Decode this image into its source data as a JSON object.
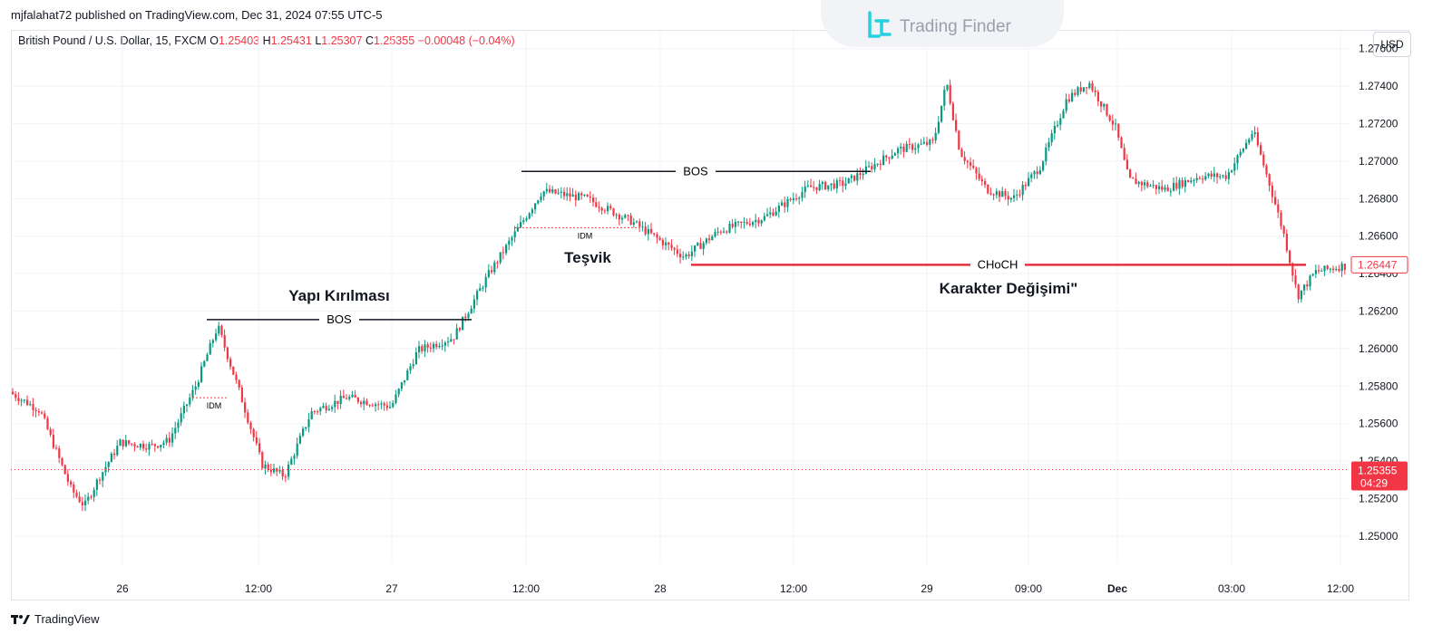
{
  "header": {
    "publisher": "mjfalahat72 published on TradingView.com, Dec 31, 2024 07:55 UTC-5",
    "symbol": "British Pound / U.S. Dollar, 15, FXCM",
    "ohlc": {
      "o_label": "O",
      "o": "1.25403",
      "h_label": "H",
      "h": "1.25431",
      "l_label": "L",
      "l": "1.25307",
      "c_label": "C",
      "c": "1.25355",
      "change": "−0.00048 (−0.04%)"
    }
  },
  "logo": {
    "text": "Trading Finder",
    "icon": "trading-finder-logo-icon"
  },
  "currency": "USD",
  "footer": {
    "brand": "TradingView",
    "icon": "tradingview-logo-icon"
  },
  "colors": {
    "up": "#089981",
    "down": "#f23645",
    "choch": "#e5303f",
    "bos": "#131722",
    "grid": "#f0f3fa",
    "price_line": "#f23645"
  },
  "chart_data": {
    "type": "candlestick",
    "title": "British Pound / U.S. Dollar, 15, FXCM",
    "ylim": [
      1.2485,
      1.277
    ],
    "y_ticks": [
      "1.27600",
      "1.27400",
      "1.27200",
      "1.27000",
      "1.26800",
      "1.26600",
      "1.26400",
      "1.26200",
      "1.26000",
      "1.25800",
      "1.25600",
      "1.25400",
      "1.25200",
      "1.25000"
    ],
    "x_ticks": [
      "26",
      "12:00",
      "27",
      "12:00",
      "28",
      "12:00",
      "29",
      "09:00",
      "Dec",
      "03:00",
      "12:00"
    ],
    "close_path": [
      [
        0.0,
        1.2577
      ],
      [
        0.035,
        1.2567
      ],
      [
        0.07,
        1.2525
      ],
      [
        0.085,
        1.2516
      ],
      [
        0.1,
        1.253
      ],
      [
        0.125,
        1.255
      ],
      [
        0.16,
        1.2548
      ],
      [
        0.18,
        1.2551
      ],
      [
        0.21,
        1.258
      ],
      [
        0.235,
        1.2612
      ],
      [
        0.26,
        1.2576
      ],
      [
        0.285,
        1.2538
      ],
      [
        0.31,
        1.2532
      ],
      [
        0.34,
        1.2566
      ],
      [
        0.38,
        1.2574
      ],
      [
        0.43,
        1.2569
      ],
      [
        0.46,
        1.2599
      ],
      [
        0.5,
        1.2606
      ],
      [
        0.54,
        1.264
      ],
      [
        0.57,
        1.2662
      ],
      [
        0.6,
        1.2684
      ],
      [
        0.65,
        1.268
      ],
      [
        0.7,
        1.2668
      ],
      [
        0.76,
        1.2649
      ],
      [
        0.8,
        1.2663
      ],
      [
        0.85,
        1.267
      ],
      [
        0.9,
        1.2686
      ],
      [
        0.94,
        1.2688
      ],
      [
        1.0,
        1.2706
      ],
      [
        1.04,
        1.271
      ],
      [
        1.055,
        1.2742
      ],
      [
        1.07,
        1.2705
      ],
      [
        1.1,
        1.2685
      ],
      [
        1.13,
        1.268
      ],
      [
        1.16,
        1.2697
      ],
      [
        1.19,
        1.2733
      ],
      [
        1.215,
        1.2742
      ],
      [
        1.245,
        1.2718
      ],
      [
        1.26,
        1.269
      ],
      [
        1.3,
        1.2685
      ],
      [
        1.34,
        1.2692
      ],
      [
        1.37,
        1.2692
      ],
      [
        1.4,
        1.2716
      ],
      [
        1.42,
        1.2685
      ],
      [
        1.435,
        1.266
      ],
      [
        1.45,
        1.2628
      ],
      [
        1.47,
        1.2641
      ],
      [
        1.5,
        1.2644
      ]
    ],
    "bos_lines": [
      {
        "label": "BOS",
        "level": 1.26155
      },
      {
        "label": "BOS",
        "level": 1.26945
      }
    ],
    "idm": [
      {
        "label": "IDM",
        "level": 1.25738
      },
      {
        "label": "IDM",
        "level": 1.26645
      }
    ],
    "choch": {
      "label": "CHoCH",
      "level": 1.26447
    },
    "annotations": [
      "Yapı Kırılması",
      "Teşvik",
      "Karakter Değişimi\""
    ],
    "last_price": {
      "label": "1.26447",
      "value": 1.26447
    },
    "current_price": {
      "label": "1.25355",
      "value": 1.25355,
      "countdown": "04:29"
    }
  }
}
